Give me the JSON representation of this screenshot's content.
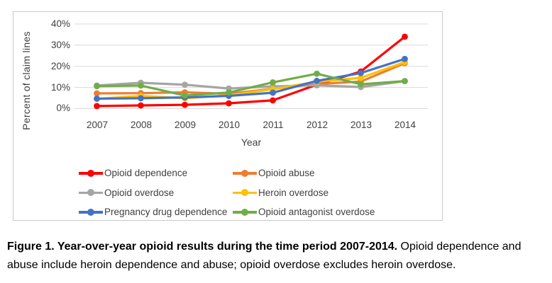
{
  "figure": {
    "caption_bold": "Figure 1. Year-over-year opioid results during the time period 2007-2014.",
    "caption_rest": " Opioid dependence and abuse include heroin dependence and abuse; opioid overdose excludes heroin overdose."
  },
  "chart_data": {
    "type": "line",
    "title": "",
    "xlabel": "Year",
    "ylabel": "Percent of claim lines",
    "categories": [
      "2007",
      "2008",
      "2009",
      "2010",
      "2011",
      "2012",
      "2013",
      "2014"
    ],
    "ylim": [
      0,
      40
    ],
    "ytick_labels": [
      "40%",
      "30%",
      "20%",
      "10%",
      "0%"
    ],
    "grid": true,
    "legend_position": "bottom",
    "series": [
      {
        "name": "Opioid dependence",
        "color": "#FF0000",
        "values": [
          1.2,
          1.5,
          1.8,
          2.5,
          3.9,
          11.3,
          17.5,
          34.0
        ]
      },
      {
        "name": "Opioid abuse",
        "color": "#ED7D31",
        "values": [
          7.2,
          7.3,
          7.7,
          7.0,
          9.4,
          11.6,
          12.8,
          21.5
        ]
      },
      {
        "name": "Opioid overdose",
        "color": "#A5A5A5",
        "values": [
          10.9,
          12.2,
          11.3,
          9.5,
          10.5,
          11.0,
          10.2,
          13.0
        ]
      },
      {
        "name": "Heroin overdose",
        "color": "#FFC000",
        "values": [
          4.6,
          6.0,
          4.9,
          6.3,
          9.2,
          12.7,
          14.5,
          22.0
        ]
      },
      {
        "name": "Pregnancy drug dependence",
        "color": "#4472C4",
        "values": [
          4.7,
          4.9,
          5.3,
          6.0,
          7.5,
          13.1,
          16.8,
          23.5
        ]
      },
      {
        "name": "Opioid antagonist overdose",
        "color": "#70AD47",
        "values": [
          10.6,
          10.9,
          6.2,
          7.6,
          12.4,
          16.5,
          11.5,
          13.0
        ]
      }
    ],
    "colors": {
      "axis_text": "#404040",
      "gridline": "#D9D9D9",
      "chart_border": "#C9C9C9"
    }
  }
}
